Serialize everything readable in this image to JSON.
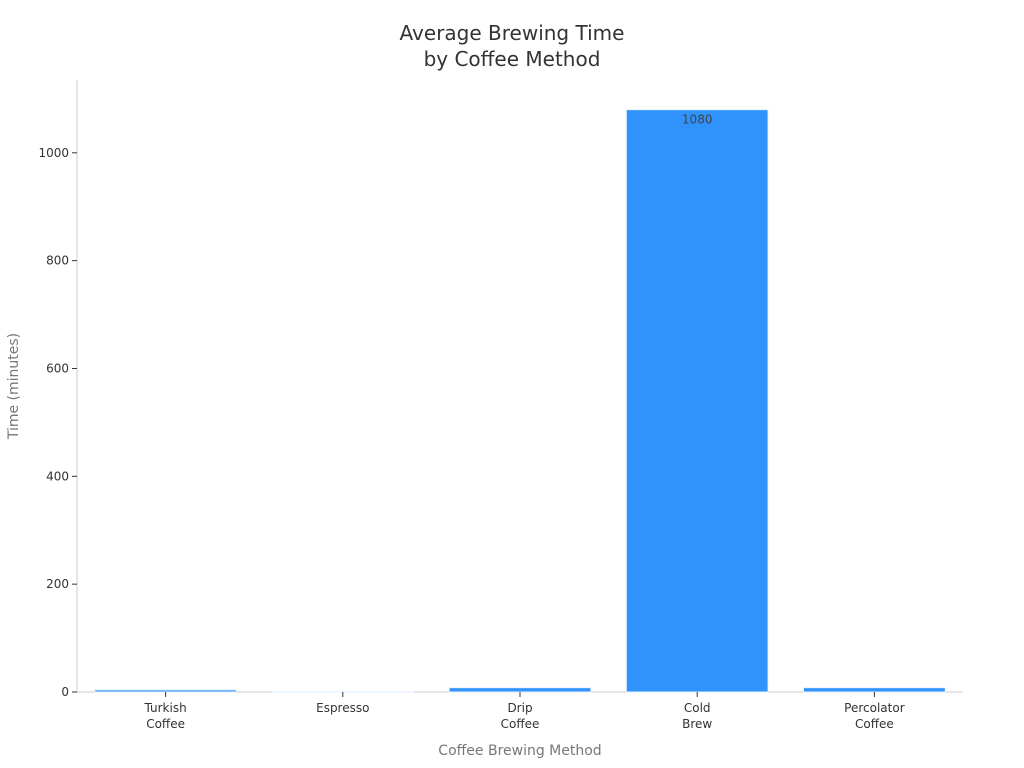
{
  "chart_data": {
    "type": "bar",
    "title_lines": [
      "Average Brewing Time",
      "by Coffee Method"
    ],
    "xlabel": "Coffee Brewing Method",
    "ylabel": "Time (minutes)",
    "categories": [
      [
        "Turkish",
        "Coffee"
      ],
      [
        "Espresso"
      ],
      [
        "Drip",
        "Coffee"
      ],
      [
        "Cold",
        "Brew"
      ],
      [
        "Percolator",
        "Coffee"
      ]
    ],
    "values": [
      4,
      0.5,
      8,
      1080,
      8
    ],
    "data_labels": [
      "",
      "",
      "",
      "1080",
      ""
    ],
    "ylim": [
      0,
      1135
    ],
    "yticks": [
      0,
      200,
      400,
      600,
      800,
      1000
    ],
    "grid": false,
    "bar_color": "#2f93fb",
    "bar_edge_color": "#eaf3fe",
    "axis_color": "#cccccc"
  }
}
